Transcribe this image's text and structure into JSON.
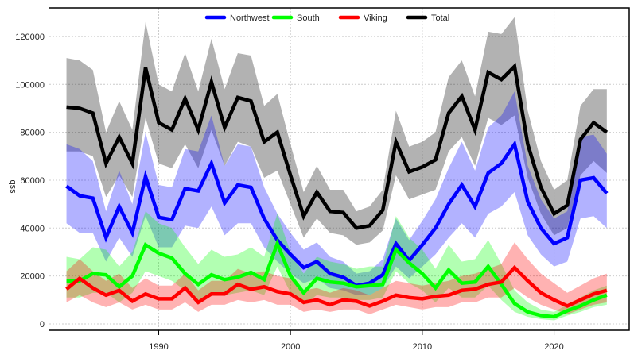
{
  "chart_data": {
    "type": "line",
    "title": "",
    "xlabel": "",
    "ylabel": "ssb",
    "xlim": [
      1981.7,
      2025.7
    ],
    "ylim": [
      -2650,
      131900
    ],
    "grid": true,
    "legend_position": "top",
    "x_ticks": [
      1990,
      2000,
      2010,
      2020
    ],
    "y_ticks": [
      0,
      20000,
      40000,
      60000,
      80000,
      100000,
      120000
    ],
    "x": [
      1983,
      1984,
      1985,
      1986,
      1987,
      1988,
      1989,
      1990,
      1991,
      1992,
      1993,
      1994,
      1995,
      1996,
      1997,
      1998,
      1999,
      2000,
      2001,
      2002,
      2003,
      2004,
      2005,
      2006,
      2007,
      2008,
      2009,
      2010,
      2011,
      2012,
      2013,
      2014,
      2015,
      2016,
      2017,
      2018,
      2019,
      2020,
      2021,
      2022,
      2023,
      2024
    ],
    "series": [
      {
        "name": "Northwest",
        "color": "#0000ff",
        "band_color": "rgba(0,0,255,0.3)",
        "values": [
          57500,
          53500,
          52500,
          36000,
          49000,
          38000,
          61500,
          44500,
          43500,
          56500,
          55500,
          67000,
          50500,
          58000,
          57000,
          44000,
          35000,
          29000,
          23500,
          26000,
          21000,
          19500,
          16000,
          17000,
          20500,
          33500,
          26500,
          33000,
          40000,
          50000,
          58000,
          49000,
          63000,
          67000,
          75000,
          51000,
          40000,
          33500,
          36000,
          60000,
          61000,
          54500
        ],
        "upper": [
          75000,
          73000,
          68000,
          47000,
          64000,
          50000,
          80000,
          58000,
          57000,
          73000,
          72000,
          87000,
          66000,
          75000,
          74000,
          57000,
          46000,
          38000,
          31000,
          34000,
          28000,
          26000,
          21000,
          22000,
          27000,
          44000,
          35000,
          43000,
          52000,
          65000,
          76000,
          64000,
          82000,
          87000,
          97000,
          66000,
          52000,
          44000,
          47000,
          78000,
          79000,
          71000
        ],
        "lower": [
          42000,
          38000,
          38000,
          26000,
          36000,
          28000,
          45000,
          32000,
          32000,
          41000,
          40000,
          49000,
          37000,
          42000,
          42000,
          32000,
          26000,
          21000,
          17000,
          19000,
          15000,
          14000,
          12000,
          12000,
          15000,
          24000,
          19000,
          24000,
          29000,
          36000,
          42000,
          36000,
          46000,
          49000,
          55000,
          37000,
          29000,
          24000,
          26000,
          44000,
          45000,
          40000
        ]
      },
      {
        "name": "South",
        "color": "#00ff00",
        "band_color": "rgba(0,255,0,0.3)",
        "values": [
          18000,
          18000,
          21000,
          20500,
          15500,
          20000,
          33000,
          29500,
          27500,
          21000,
          16500,
          20500,
          18500,
          19500,
          21500,
          18500,
          33500,
          20000,
          13000,
          19000,
          17500,
          17000,
          15500,
          16000,
          16500,
          31000,
          25500,
          21000,
          15000,
          22500,
          17000,
          17500,
          24000,
          16500,
          8500,
          5000,
          3500,
          3000,
          5500,
          7500,
          10000,
          12000
        ],
        "upper": [
          28000,
          27000,
          32000,
          31000,
          24000,
          30000,
          47000,
          42000,
          40000,
          32000,
          25000,
          31000,
          28000,
          29000,
          32000,
          28000,
          46000,
          30000,
          21000,
          28000,
          26000,
          25000,
          23000,
          24000,
          24000,
          45000,
          36000,
          31000,
          23000,
          33000,
          26000,
          27000,
          35000,
          25000,
          14000,
          9000,
          6000,
          5000,
          8000,
          11000,
          14000,
          16000
        ],
        "lower": [
          11000,
          11000,
          13000,
          13000,
          9000,
          13000,
          22000,
          20000,
          18000,
          14000,
          10000,
          13000,
          12000,
          13000,
          14000,
          12000,
          24000,
          13000,
          8000,
          12000,
          11000,
          11000,
          10000,
          10000,
          11000,
          22000,
          17000,
          14000,
          9000,
          15000,
          11000,
          11000,
          16000,
          10000,
          5000,
          3000,
          2000,
          1500,
          3500,
          5000,
          7000,
          8000
        ]
      },
      {
        "name": "Viking",
        "color": "#ff0000",
        "band_color": "rgba(255,0,0,0.3)",
        "values": [
          14500,
          19000,
          15000,
          12000,
          14000,
          9500,
          12500,
          10500,
          10500,
          15000,
          9000,
          12500,
          12500,
          16500,
          14500,
          15500,
          13500,
          12500,
          9000,
          10000,
          8000,
          10000,
          9500,
          7500,
          9500,
          12000,
          11000,
          10500,
          11500,
          12000,
          14000,
          14500,
          16500,
          17500,
          23500,
          18000,
          13000,
          10000,
          7500,
          10000,
          12500,
          14000
        ],
        "upper": [
          22000,
          27000,
          22000,
          18000,
          21000,
          15000,
          19000,
          16000,
          16000,
          21000,
          14000,
          18000,
          18000,
          23000,
          21000,
          22000,
          20000,
          19000,
          14000,
          15000,
          13000,
          15000,
          14000,
          12000,
          15000,
          18000,
          17000,
          16000,
          17000,
          18000,
          20000,
          21000,
          23000,
          25000,
          34000,
          27000,
          21000,
          17000,
          13000,
          16000,
          19000,
          21000
        ],
        "lower": [
          9000,
          12000,
          9000,
          7000,
          9000,
          6000,
          8000,
          6000,
          6000,
          9000,
          5000,
          8000,
          8000,
          10000,
          9000,
          10000,
          8000,
          8000,
          5000,
          6000,
          5000,
          6000,
          6000,
          4000,
          6000,
          8000,
          7000,
          6000,
          7000,
          7000,
          9000,
          9000,
          11000,
          11000,
          15000,
          11000,
          8000,
          6000,
          4000,
          6000,
          8000,
          9000
        ]
      },
      {
        "name": "Total",
        "color": "#000000",
        "band_color": "rgba(0,0,0,0.3)",
        "values": [
          90500,
          90000,
          88000,
          67000,
          78000,
          67000,
          107000,
          84000,
          81000,
          94000,
          81000,
          101000,
          82000,
          94500,
          93000,
          76000,
          80000,
          62000,
          45000,
          55000,
          47000,
          46500,
          40000,
          41000,
          47500,
          76000,
          63500,
          65500,
          68500,
          88000,
          95000,
          81000,
          105000,
          102000,
          107500,
          75000,
          57000,
          46000,
          49500,
          77000,
          84000,
          80000
        ],
        "upper": [
          111000,
          110000,
          106000,
          80000,
          93000,
          81000,
          126000,
          100000,
          97000,
          113000,
          97000,
          119000,
          98000,
          113000,
          112000,
          91000,
          96000,
          75000,
          55000,
          66000,
          56000,
          56000,
          47000,
          49000,
          56000,
          89000,
          74000,
          76000,
          80000,
          103000,
          110000,
          95000,
          122000,
          121000,
          128000,
          89000,
          68000,
          56000,
          60000,
          91000,
          98000,
          98000
        ],
        "lower": [
          72000,
          72000,
          70000,
          53000,
          62000,
          53000,
          86000,
          67000,
          65000,
          75000,
          65000,
          81000,
          66000,
          76000,
          74000,
          61000,
          64000,
          50000,
          36000,
          44000,
          38000,
          37000,
          33000,
          34000,
          39000,
          62000,
          52000,
          54000,
          56000,
          72000,
          78000,
          66000,
          86000,
          83000,
          87000,
          61000,
          46000,
          37000,
          40000,
          62000,
          68000,
          63000
        ]
      }
    ]
  }
}
